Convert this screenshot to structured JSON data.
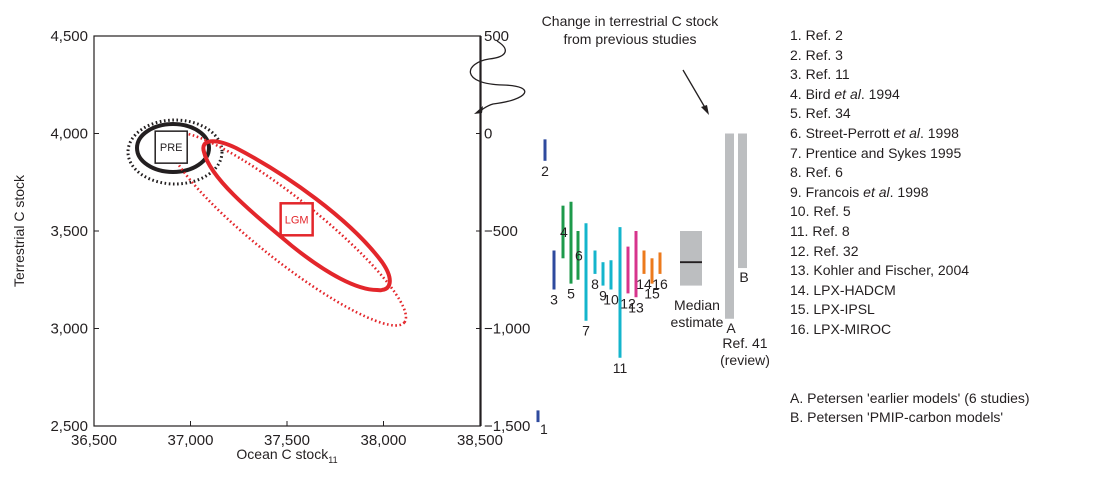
{
  "chart_data": {
    "type": "scatter",
    "xlabel": "Ocean C stock",
    "xlabel_sub": "11",
    "ylabel": "Terrestrial C stock",
    "xlim": [
      36500,
      38500
    ],
    "ylim": [
      2500,
      4500
    ],
    "x_ticks": [
      36500,
      37000,
      37500,
      38000,
      38500
    ],
    "x_tick_labels": [
      "36,500",
      "37,000",
      "37,500",
      "38,000",
      "38,500"
    ],
    "y_ticks": [
      2500,
      3000,
      3500,
      4000,
      4500
    ],
    "y_tick_labels": [
      "2,500",
      "3,000",
      "3,500",
      "4,000",
      "4,500"
    ],
    "right_axis": {
      "range": [
        -1500,
        500
      ],
      "ticks": [
        500,
        0,
        -500,
        -1000,
        -1500
      ],
      "tick_labels": [
        "500",
        "0",
        "−500",
        "−1,000",
        "−1,500"
      ]
    },
    "points": [
      {
        "label": "PRE",
        "x": 36900,
        "y": 3930
      },
      {
        "label": "LGM",
        "x": 37550,
        "y": 3560
      }
    ],
    "studies": [
      {
        "label": "1",
        "low": -1480,
        "high": -1420
      },
      {
        "label": "2",
        "low": -140,
        "high": -30
      },
      {
        "label": "3",
        "low": -800,
        "high": -600
      },
      {
        "label": "4",
        "low": -640,
        "high": -370
      },
      {
        "label": "5",
        "low": -770,
        "high": -350
      },
      {
        "label": "6",
        "low": -750,
        "high": -500
      },
      {
        "label": "7",
        "low": -960,
        "high": -460
      },
      {
        "label": "8",
        "low": -720,
        "high": -600
      },
      {
        "label": "9",
        "low": -780,
        "high": -660
      },
      {
        "label": "10",
        "low": -800,
        "high": -650
      },
      {
        "label": "11",
        "low": -1150,
        "high": -480
      },
      {
        "label": "12",
        "low": -820,
        "high": -580
      },
      {
        "label": "13",
        "low": -840,
        "high": -500
      },
      {
        "label": "14",
        "low": -720,
        "high": -600
      },
      {
        "label": "15",
        "low": -770,
        "high": -640
      },
      {
        "label": "16",
        "low": -720,
        "high": -610
      }
    ],
    "median": {
      "low": -780,
      "high": -500,
      "value": -660
    },
    "ranges": [
      {
        "label": "A",
        "low": -950,
        "high": 0
      },
      {
        "label": "B",
        "low": -690,
        "high": 0
      }
    ],
    "annotations": {
      "header": [
        "Change in terrestrial C stock",
        "from previous studies"
      ],
      "median": [
        "Median",
        "estimate"
      ],
      "ref41": [
        "Ref. 41",
        "(review)"
      ]
    },
    "colors": {
      "pre": "#231f20",
      "lgm": "#e3262b",
      "range_bar": "#bcbec0",
      "median_box": "#bcbec0"
    }
  },
  "legend": [
    {
      "num": "1.",
      "text": "Ref. 2"
    },
    {
      "num": "2.",
      "text": "Ref. 3"
    },
    {
      "num": "3.",
      "text": "Ref. 11"
    },
    {
      "num": "4.",
      "text": "Bird",
      "italic": "et al",
      "suffix": ". 1994"
    },
    {
      "num": "5.",
      "text": "Ref. 34"
    },
    {
      "num": "6.",
      "text": "Street-Perrott",
      "italic": "et al",
      "suffix": ". 1998"
    },
    {
      "num": "7.",
      "text": "Prentice and Sykes 1995"
    },
    {
      "num": "8.",
      "text": "Ref. 6"
    },
    {
      "num": "9.",
      "text": "Francois",
      "italic": "et al",
      "suffix": ". 1998"
    },
    {
      "num": "10.",
      "text": "Ref. 5"
    },
    {
      "num": "11.",
      "text": "Ref. 8"
    },
    {
      "num": "12.",
      "text": "Ref. 32"
    },
    {
      "num": "13.",
      "text": "Kohler and Fischer, 2004"
    },
    {
      "num": "14.",
      "text": "LPX-HADCM"
    },
    {
      "num": "15.",
      "text": "LPX-IPSL"
    },
    {
      "num": "16.",
      "text": "LPX-MIROC"
    }
  ],
  "notes": [
    "A. Petersen 'earlier models' (6 studies)",
    "B. Petersen 'PMIP-carbon models'"
  ]
}
